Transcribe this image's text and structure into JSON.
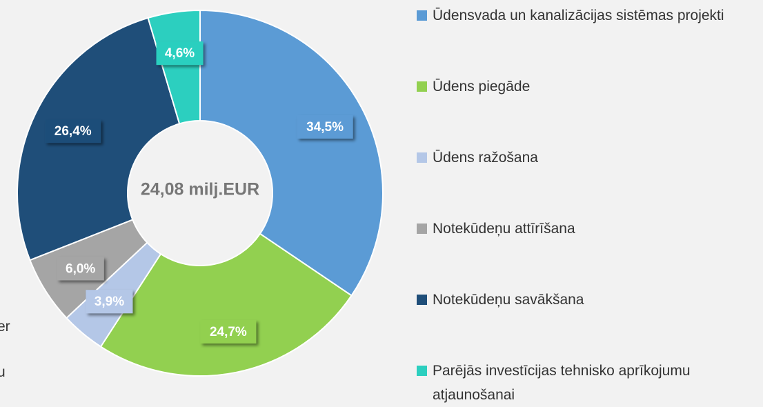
{
  "chart_data": {
    "type": "donut",
    "center_label": "24,08 milj.EUR",
    "categories": [
      "Ūdensvada un kanalizācijas sistēmas projekti",
      "Ūdens piegāde",
      "Ūdens ražošana",
      "Notekūdeņu attīrīšana",
      "Notekūdeņu savākšana",
      "Parējās investīcijas tehnisko aprīkojumu atjaunošanai"
    ],
    "values": [
      34.5,
      24.7,
      3.9,
      6.0,
      26.4,
      4.6
    ],
    "value_labels": [
      "34,5%",
      "24,7%",
      "3,9%",
      "6,0%",
      "26,4%",
      "4,6%"
    ],
    "colors": [
      "#5b9bd5",
      "#92d050",
      "#b4c7e7",
      "#a5a5a5",
      "#1f4e79",
      "#2ccfbf"
    ],
    "legend": "right",
    "background_text": [
      "er",
      "u"
    ]
  }
}
